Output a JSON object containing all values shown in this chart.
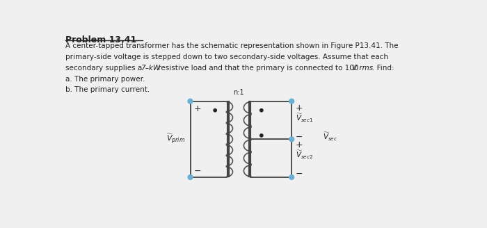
{
  "title": "Problem 13.41",
  "line1": "A center-tapped transformer has the schematic representation shown in Figure P13.41. The",
  "line2": "primary-side voltage is stepped down to two secondary-side voltages. Assume that each",
  "line3a": "secondary supplies a ",
  "line3b": "7–kW",
  "line3c": " resistive load and that the primary is connected to 100 ",
  "line3d": "V rms",
  "line3e": ". Find:",
  "line4": "a. The primary power.",
  "line5": "b. The primary current.",
  "ratio_label": "n:1",
  "dot_color": "#6ab0d4",
  "wire_color": "#333333",
  "coil_color": "#555555",
  "core_color": "#444444",
  "bg_color": "#f0f0f0",
  "text_color": "#222222"
}
